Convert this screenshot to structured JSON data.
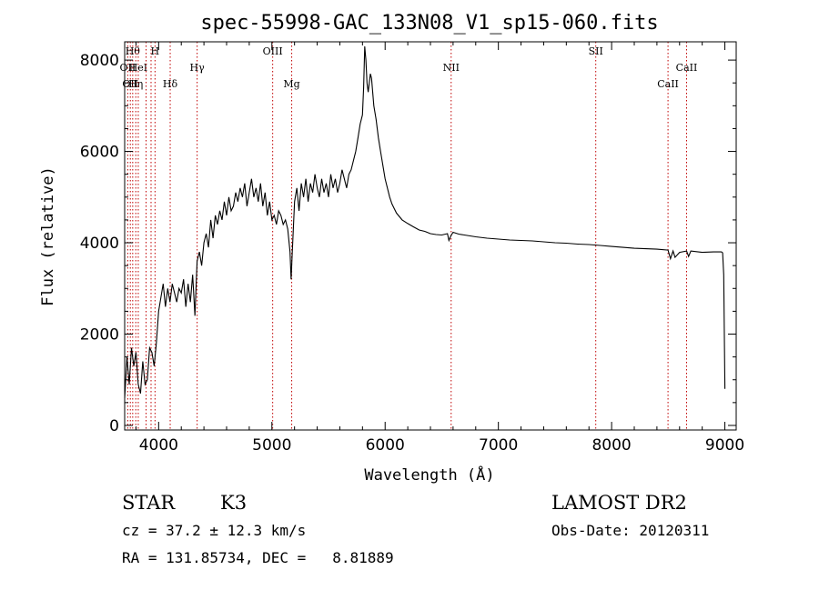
{
  "chart_data": {
    "type": "line",
    "title": "spec-55998-GAC_133N08_V1_sp15-060.fits",
    "xlabel": "Wavelength (Å)",
    "ylabel": "Flux (relative)",
    "xlim": [
      3700,
      9100
    ],
    "ylim": [
      -100,
      8400
    ],
    "xticks": [
      4000,
      5000,
      6000,
      7000,
      8000,
      9000
    ],
    "yticks": [
      0,
      2000,
      4000,
      6000,
      8000
    ],
    "grid": false,
    "series": [
      {
        "x": [
          3700,
          3720,
          3740,
          3760,
          3780,
          3800,
          3820,
          3840,
          3860,
          3880,
          3900,
          3920,
          3940,
          3960,
          3980,
          4000,
          4020,
          4040,
          4060,
          4080,
          4100,
          4120,
          4140,
          4160,
          4180,
          4200,
          4220,
          4240,
          4260,
          4280,
          4300,
          4320,
          4340,
          4360,
          4380,
          4400,
          4420,
          4440,
          4460,
          4480,
          4500,
          4520,
          4540,
          4560,
          4580,
          4600,
          4620,
          4640,
          4660,
          4680,
          4700,
          4720,
          4740,
          4760,
          4780,
          4800,
          4820,
          4840,
          4860,
          4880,
          4900,
          4920,
          4940,
          4960,
          4980,
          5000,
          5020,
          5040,
          5060,
          5080,
          5100,
          5120,
          5140,
          5160,
          5170,
          5180,
          5200,
          5220,
          5240,
          5260,
          5280,
          5300,
          5320,
          5340,
          5360,
          5380,
          5400,
          5420,
          5440,
          5460,
          5480,
          5500,
          5520,
          5540,
          5560,
          5580,
          5600,
          5620,
          5640,
          5660,
          5680,
          5700,
          5720,
          5740,
          5760,
          5780,
          5800,
          5810,
          5820,
          5830,
          5840,
          5850,
          5860,
          5870,
          5880,
          5900,
          5920,
          5940,
          5960,
          5980,
          6000,
          6020,
          6040,
          6060,
          6080,
          6100,
          6150,
          6200,
          6250,
          6300,
          6350,
          6400,
          6450,
          6500,
          6550,
          6563,
          6580,
          6600,
          6650,
          6700,
          6800,
          6900,
          7000,
          7100,
          7200,
          7300,
          7400,
          7500,
          7600,
          7700,
          7800,
          7900,
          8000,
          8100,
          8200,
          8300,
          8400,
          8498,
          8520,
          8542,
          8560,
          8600,
          8662,
          8680,
          8700,
          8800,
          8900,
          8970,
          8980,
          8990,
          9000
        ],
        "y": [
          600,
          1500,
          900,
          1700,
          1300,
          1600,
          900,
          700,
          1400,
          900,
          1000,
          1700,
          1600,
          1300,
          1800,
          2500,
          2800,
          3100,
          2600,
          3000,
          2700,
          3100,
          2900,
          2700,
          3000,
          2900,
          3200,
          2600,
          3100,
          2700,
          3300,
          2400,
          3600,
          3800,
          3500,
          4000,
          4200,
          3900,
          4500,
          4100,
          4600,
          4400,
          4700,
          4500,
          4900,
          4600,
          5000,
          4700,
          4800,
          5100,
          4900,
          5200,
          5000,
          5300,
          4800,
          5100,
          5400,
          5000,
          5200,
          4900,
          5300,
          4800,
          5100,
          4600,
          4900,
          4500,
          4600,
          4400,
          4700,
          4600,
          4400,
          4500,
          4300,
          3800,
          3200,
          3800,
          4900,
          5200,
          4700,
          5300,
          5000,
          5400,
          4900,
          5300,
          5100,
          5500,
          5200,
          5000,
          5400,
          5100,
          5300,
          5000,
          5500,
          5200,
          5400,
          5100,
          5300,
          5600,
          5400,
          5200,
          5500,
          5600,
          5800,
          6000,
          6300,
          6600,
          6800,
          7400,
          8300,
          8000,
          7500,
          7300,
          7500,
          7700,
          7600,
          7000,
          6700,
          6300,
          6000,
          5700,
          5400,
          5200,
          5000,
          4850,
          4750,
          4650,
          4500,
          4420,
          4350,
          4280,
          4250,
          4200,
          4180,
          4170,
          4200,
          4050,
          4150,
          4230,
          4190,
          4170,
          4130,
          4100,
          4080,
          4060,
          4050,
          4040,
          4020,
          4000,
          3990,
          3970,
          3960,
          3940,
          3920,
          3900,
          3880,
          3870,
          3860,
          3840,
          3650,
          3820,
          3680,
          3790,
          3820,
          3700,
          3820,
          3790,
          3800,
          3800,
          3780,
          3300,
          800
        ]
      }
    ],
    "lines": [
      {
        "x": 3727,
        "label": "OII",
        "row": 2
      },
      {
        "x": 3750,
        "label": "OII",
        "row": 3
      },
      {
        "x": 3771,
        "label": "Hθ",
        "row": 1
      },
      {
        "x": 3798,
        "label": "Hη",
        "row": 3
      },
      {
        "x": 3820,
        "label": "HeI",
        "row": 2
      },
      {
        "x": 3889,
        "label": "",
        "row": 0
      },
      {
        "x": 3933,
        "label": "",
        "row": 0
      },
      {
        "x": 3968,
        "label": "H",
        "row": 1
      },
      {
        "x": 4102,
        "label": "Hδ",
        "row": 3
      },
      {
        "x": 4340,
        "label": "Hγ",
        "row": 2
      },
      {
        "x": 5007,
        "label": "OIII",
        "row": 1
      },
      {
        "x": 5175,
        "label": "Mg",
        "row": 3
      },
      {
        "x": 6583,
        "label": "NII",
        "row": 2
      },
      {
        "x": 7860,
        "label": "SII",
        "row": 1
      },
      {
        "x": 8498,
        "label": "CaII",
        "row": 3
      },
      {
        "x": 8662,
        "label": "CaII",
        "row": 2
      }
    ],
    "line_color": "#c00000"
  },
  "info": {
    "class": "STAR",
    "subclass": "K3",
    "survey": "LAMOST DR2",
    "cz": "cz = 37.2 ± 12.3 km/s",
    "obs_date": "Obs-Date: 20120311",
    "coords": "RA = 131.85734, DEC =   8.81889"
  }
}
